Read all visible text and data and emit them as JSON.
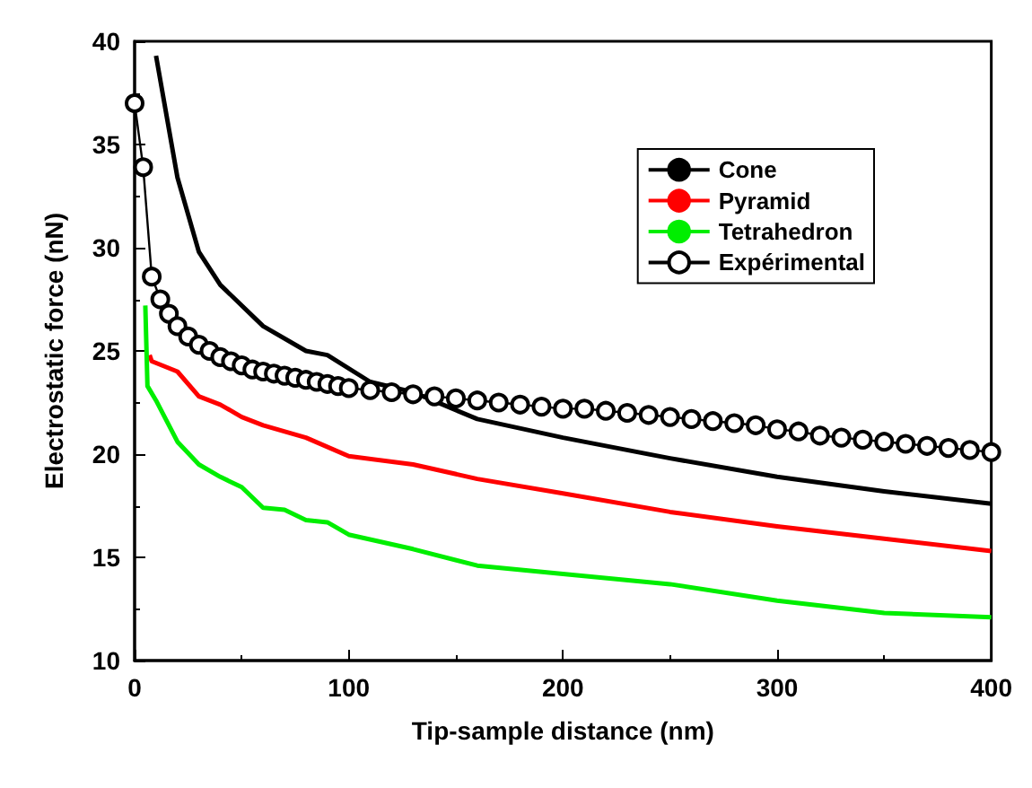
{
  "chart_data": {
    "type": "line",
    "xlabel": "Tip-sample distance (nm)",
    "ylabel": "Electrostatic force (nN)",
    "xlim": [
      0,
      400
    ],
    "xticks": [
      0,
      100,
      200,
      300,
      400
    ],
    "ylim": [
      10,
      40
    ],
    "yticks": [
      10,
      15,
      20,
      25,
      30,
      35,
      40
    ],
    "grid": false,
    "legend": "top right",
    "series": [
      {
        "name": "Cone",
        "color": "#000000",
        "marker": "none",
        "x": [
          10,
          20,
          30,
          40,
          60,
          80,
          90,
          110,
          130,
          160,
          200,
          250,
          300,
          350,
          400
        ],
        "values": [
          39.3,
          33.4,
          29.8,
          28.2,
          26.2,
          25.0,
          24.8,
          23.5,
          23.0,
          21.7,
          20.8,
          19.8,
          18.9,
          18.2,
          17.6
        ]
      },
      {
        "name": "Pyramid",
        "color": "#ff0000",
        "marker": "none",
        "x": [
          7,
          8,
          20,
          30,
          40,
          50,
          60,
          80,
          100,
          130,
          160,
          200,
          250,
          300,
          350,
          400
        ],
        "values": [
          24.8,
          24.5,
          24.0,
          22.8,
          22.4,
          21.8,
          21.4,
          20.8,
          19.9,
          19.5,
          18.8,
          18.1,
          17.2,
          16.5,
          15.9,
          15.3
        ]
      },
      {
        "name": "Tetrahedron",
        "color": "#00ee00",
        "marker": "none",
        "x": [
          5,
          6,
          10,
          20,
          30,
          40,
          50,
          60,
          70,
          80,
          90,
          100,
          130,
          160,
          200,
          250,
          300,
          350,
          400
        ],
        "values": [
          27.2,
          23.3,
          22.6,
          20.6,
          19.5,
          18.9,
          18.4,
          17.4,
          17.3,
          16.8,
          16.7,
          16.1,
          15.4,
          14.6,
          14.2,
          13.7,
          12.9,
          12.3,
          12.1
        ]
      },
      {
        "name": "Expérimental",
        "color": "#000000",
        "marker": "circle",
        "x": [
          0,
          4,
          8,
          12,
          16,
          20,
          25,
          30,
          35,
          40,
          45,
          50,
          55,
          60,
          65,
          70,
          75,
          80,
          85,
          90,
          95,
          100,
          110,
          120,
          130,
          140,
          150,
          160,
          170,
          180,
          190,
          200,
          210,
          220,
          230,
          240,
          250,
          260,
          270,
          280,
          290,
          300,
          310,
          320,
          330,
          340,
          350,
          360,
          370,
          380,
          390,
          400
        ],
        "values": [
          37.0,
          33.9,
          28.6,
          27.5,
          26.8,
          26.2,
          25.7,
          25.3,
          25.0,
          24.7,
          24.5,
          24.3,
          24.1,
          24.0,
          23.9,
          23.8,
          23.7,
          23.6,
          23.5,
          23.4,
          23.3,
          23.2,
          23.1,
          23.0,
          22.9,
          22.8,
          22.7,
          22.6,
          22.5,
          22.4,
          22.3,
          22.2,
          22.2,
          22.1,
          22.0,
          21.9,
          21.8,
          21.7,
          21.6,
          21.5,
          21.4,
          21.2,
          21.1,
          20.9,
          20.8,
          20.7,
          20.6,
          20.5,
          20.4,
          20.3,
          20.2,
          20.1
        ]
      }
    ]
  }
}
